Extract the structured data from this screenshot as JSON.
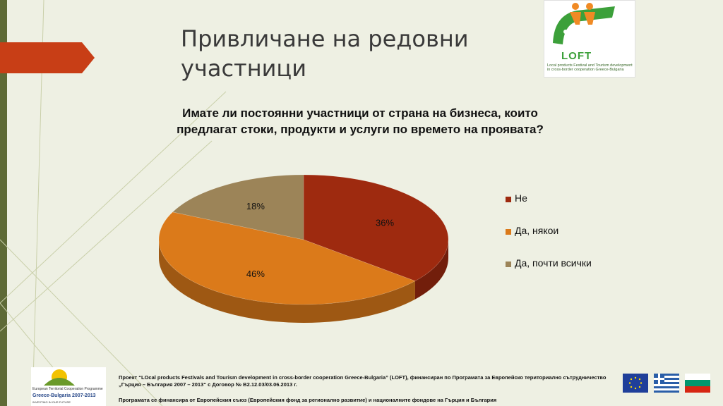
{
  "slide": {
    "title": "Привличане на редовни участници"
  },
  "logo": {
    "name": "LOFT",
    "tagline": "Local products Festival and Tourism development in cross-border cooperation Greece-Bulgaria"
  },
  "chart_data": {
    "type": "pie",
    "title": "Имате ли постоянни участници от страна на бизнеса, които предлагат стоки, продукти и услуги по времето на проявата?",
    "categories": [
      "Не",
      "Да, някои",
      "Да, почти всички"
    ],
    "values": [
      36,
      46,
      18
    ],
    "labels": [
      "36%",
      "46%",
      "18%"
    ],
    "colors": [
      "#9e2a0f",
      "#db7a1a",
      "#9c8458"
    ],
    "legend_position": "right",
    "style": "3d"
  },
  "footer": {
    "programme_logo": {
      "line1": "European Territorial Cooperation Programme",
      "line2": "Greece-Bulgaria 2007-2013",
      "line3": "INVESTING IN OUR FUTURE"
    },
    "text1": "Проект “LOcal products Festivals and Tourism development in cross-border cooperation Greece-Bulgaria” (LOFT), финансиран по Програмата за Европейско териториално сътрудничество „Гърция – България 2007 – 2013“ с Договор № В2.12.03/03.06.2013 г.",
    "text2": "Програмата се финансира от Европейския съюз (Европейския фонд за регионално развитие) и националните фондове на Гърция и България"
  }
}
